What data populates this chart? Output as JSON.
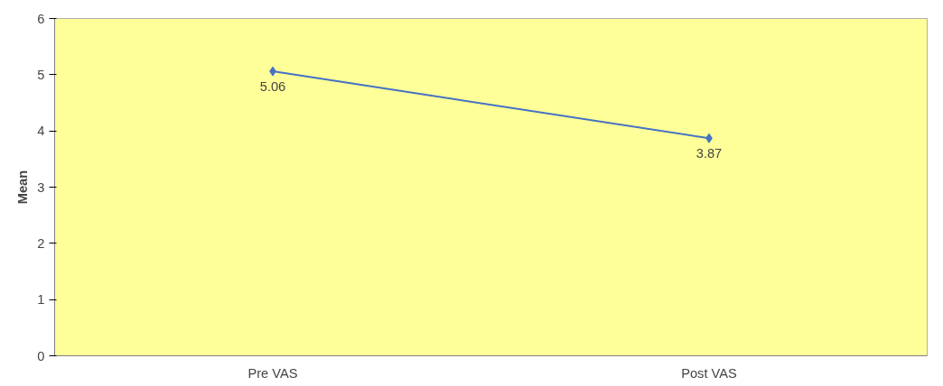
{
  "chart_data": {
    "type": "line",
    "ylabel": "Mean",
    "categories": [
      "Pre VAS",
      "Post VAS"
    ],
    "series": [
      {
        "color": "#4472c4",
        "values": [
          5.06,
          3.87
        ]
      }
    ],
    "ylim": [
      0,
      6
    ],
    "yticks": [
      0,
      1,
      2,
      3,
      4,
      5,
      6
    ],
    "grid": false,
    "marker": "diamond",
    "line_style": "solid",
    "data_labels": true
  }
}
